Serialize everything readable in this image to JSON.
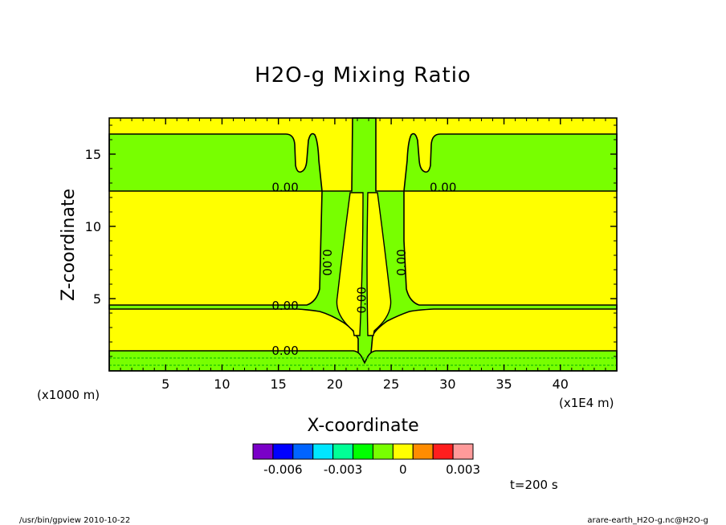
{
  "chart_data": {
    "type": "heatmap",
    "title": "H2O-g Mixing Ratio",
    "xlabel": "X-coordinate",
    "ylabel": "Z-coordinate",
    "x_unit": "(x1E4 m)",
    "y_unit": "(x1000 m)",
    "xlim": [
      0,
      45
    ],
    "ylim": [
      0,
      17.5
    ],
    "xticks": [
      5,
      10,
      15,
      20,
      25,
      30,
      35,
      40
    ],
    "yticks": [
      5,
      10,
      15
    ],
    "contour_labels": [
      {
        "text": "0.00",
        "x": 15.6,
        "y": 12.7
      },
      {
        "text": "0.00",
        "x": 29.6,
        "y": 12.7
      },
      {
        "text": "0.00",
        "x": 15.6,
        "y": 4.5
      },
      {
        "text": "0.00",
        "x": 15.6,
        "y": 1.4
      },
      {
        "text": "0.00",
        "x": 19.3,
        "y": 7.5,
        "rotate": 90
      },
      {
        "text": "0.00",
        "x": 25.9,
        "y": 7.5,
        "rotate": 270
      },
      {
        "text": "0.00",
        "x": 22.4,
        "y": 4.9,
        "rotate": 270
      }
    ],
    "colorbar": {
      "colors": [
        "#7a00c8",
        "#0000ff",
        "#0064ff",
        "#00e6ff",
        "#00ff96",
        "#00ff00",
        "#78ff00",
        "#ffff00",
        "#ff8c00",
        "#ff1e1e",
        "#ff9a9a"
      ],
      "tick_labels": [
        "-0.006",
        "-0.003",
        "0",
        "0.003"
      ],
      "tick_values": [
        -0.006,
        -0.003,
        0,
        0.003
      ],
      "range": [
        -0.0075,
        0.0035
      ]
    },
    "time_label": "t=200 s"
  },
  "footer": {
    "left": "/usr/bin/gpview  2010-10-22",
    "right": "arare-earth_H2O-g.nc@H2O-g"
  },
  "colors": {
    "yellow_band": "#ffff00",
    "green_band": "#78ff00",
    "contour": "#000000"
  }
}
